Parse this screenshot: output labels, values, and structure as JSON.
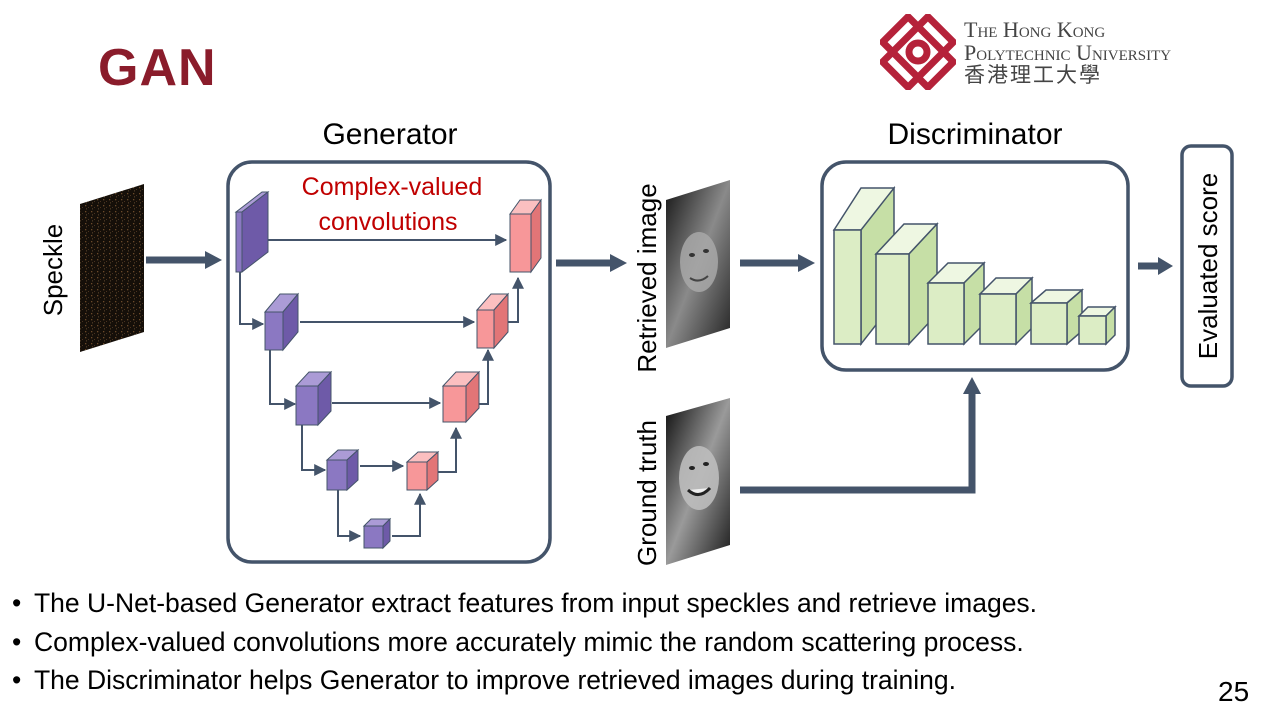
{
  "slide": {
    "title": "GAN",
    "page_number": "25"
  },
  "university": {
    "name_line1": "The Hong Kong",
    "name_line2": "Polytechnic University",
    "name_chinese": "香港理工大學",
    "logo_color": "#b5223a"
  },
  "diagram": {
    "speckle_label": "Speckle",
    "generator_label": "Generator",
    "complex_label_line1": "Complex-valued",
    "complex_label_line2": "convolutions",
    "retrieved_label": "Retrieved image",
    "ground_truth_label": "Ground truth",
    "discriminator_label": "Discriminator",
    "score_label": "Evaluated score",
    "colors": {
      "encoder_block": "#8b78c2",
      "decoder_block": "#f79799",
      "discriminator_block": "#dcedc5",
      "arrow": "#44546a",
      "accent_text": "#c00000"
    }
  },
  "bullets": [
    "The U-Net-based Generator extract features from input speckles and retrieve images.",
    "Complex-valued convolutions more accurately mimic the random scattering process.",
    "The Discriminator helps Generator to improve retrieved images during training."
  ]
}
